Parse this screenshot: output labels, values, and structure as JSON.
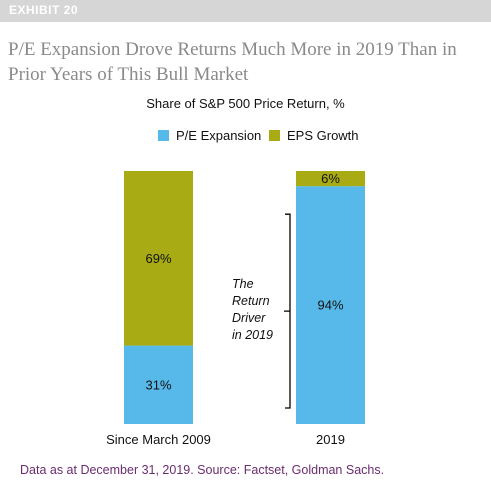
{
  "header": {
    "exhibit_label": "EXHIBIT 20",
    "headline": "P/E Expansion Drove Returns Much More in 2019 Than in Prior Years of This Bull Market"
  },
  "colors": {
    "pe_expansion": "#57b9e9",
    "eps_growth": "#a8ab14",
    "bracket": "#000000"
  },
  "chart_data": {
    "type": "bar",
    "stacked": true,
    "title": "Share of S&P 500 Price Return, %",
    "categories": [
      "Since March 2009",
      "2019"
    ],
    "series": [
      {
        "name": "P/E Expansion",
        "values": [
          31,
          94
        ],
        "labels": [
          "31%",
          "94%"
        ],
        "color": "#57b9e9"
      },
      {
        "name": "EPS Growth",
        "values": [
          69,
          6
        ],
        "labels": [
          "69%",
          "6%"
        ],
        "color": "#a8ab14"
      }
    ],
    "ylim": [
      0,
      100
    ],
    "legend_position": "top",
    "grid": false,
    "annotation": {
      "lines": [
        "The",
        "Return",
        "Driver",
        "in 2019"
      ],
      "target_category": "2019",
      "target_series": "P/E Expansion"
    }
  },
  "footer": {
    "source": "Data as at December 31, 2019. Source: Factset, Goldman Sachs."
  }
}
